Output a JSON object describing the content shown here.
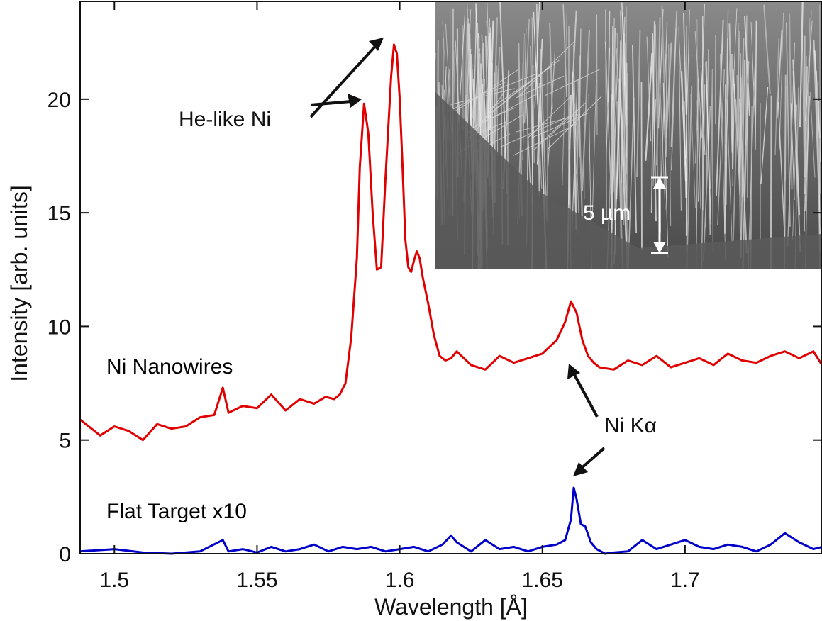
{
  "chart_data": {
    "type": "line",
    "xlabel": "Wavelength [Å]",
    "ylabel": "Intensity [arb. units]",
    "xlim": [
      1.488,
      1.748
    ],
    "ylim": [
      0,
      24.3
    ],
    "x_ticks": [
      1.5,
      1.55,
      1.6,
      1.65,
      1.7
    ],
    "x_tick_labels": [
      "1.5",
      "1.55",
      "1.6",
      "1.65",
      "1.7"
    ],
    "y_ticks": [
      0,
      5,
      10,
      15,
      20
    ],
    "y_tick_labels": [
      "0",
      "5",
      "10",
      "15",
      "20"
    ],
    "grid": false,
    "series": [
      {
        "name": "Ni Nanowires",
        "color": "#e00000",
        "x": [
          1.488,
          1.495,
          1.5,
          1.505,
          1.51,
          1.515,
          1.52,
          1.525,
          1.53,
          1.535,
          1.538,
          1.54,
          1.545,
          1.55,
          1.555,
          1.56,
          1.565,
          1.57,
          1.574,
          1.577,
          1.579,
          1.581,
          1.583,
          1.585,
          1.586,
          1.5875,
          1.589,
          1.5905,
          1.592,
          1.5935,
          1.595,
          1.597,
          1.598,
          1.599,
          1.6,
          1.601,
          1.602,
          1.603,
          1.604,
          1.605,
          1.606,
          1.607,
          1.608,
          1.61,
          1.612,
          1.614,
          1.616,
          1.618,
          1.62,
          1.625,
          1.63,
          1.635,
          1.64,
          1.645,
          1.65,
          1.655,
          1.658,
          1.66,
          1.662,
          1.664,
          1.666,
          1.668,
          1.67,
          1.675,
          1.68,
          1.685,
          1.69,
          1.695,
          1.7,
          1.705,
          1.71,
          1.715,
          1.72,
          1.725,
          1.73,
          1.735,
          1.74,
          1.745,
          1.748
        ],
        "values": [
          5.9,
          5.2,
          5.6,
          5.4,
          5.0,
          5.7,
          5.5,
          5.6,
          6.0,
          6.1,
          7.3,
          6.2,
          6.5,
          6.4,
          7.0,
          6.3,
          6.8,
          6.6,
          6.9,
          6.8,
          7.0,
          7.5,
          9.5,
          13.0,
          17.0,
          19.8,
          18.5,
          15.0,
          12.5,
          12.6,
          16.5,
          21.0,
          22.4,
          22.0,
          20.0,
          17.0,
          13.8,
          12.6,
          12.4,
          12.9,
          13.3,
          13.0,
          12.2,
          11.0,
          9.6,
          8.7,
          8.5,
          8.6,
          8.9,
          8.3,
          8.1,
          8.7,
          8.4,
          8.6,
          8.8,
          9.4,
          10.2,
          11.1,
          10.6,
          9.4,
          8.7,
          8.4,
          8.2,
          8.1,
          8.5,
          8.3,
          8.7,
          8.2,
          8.4,
          8.6,
          8.3,
          8.8,
          8.5,
          8.4,
          8.7,
          8.9,
          8.6,
          8.9,
          8.3
        ]
      },
      {
        "name": "Flat Target x10",
        "color": "#0000c8",
        "x": [
          1.488,
          1.5,
          1.51,
          1.52,
          1.53,
          1.538,
          1.54,
          1.545,
          1.55,
          1.555,
          1.56,
          1.565,
          1.57,
          1.575,
          1.58,
          1.585,
          1.59,
          1.595,
          1.6,
          1.605,
          1.61,
          1.615,
          1.618,
          1.62,
          1.625,
          1.63,
          1.635,
          1.64,
          1.645,
          1.65,
          1.655,
          1.658,
          1.66,
          1.661,
          1.662,
          1.6635,
          1.665,
          1.667,
          1.669,
          1.672,
          1.675,
          1.68,
          1.685,
          1.69,
          1.695,
          1.7,
          1.705,
          1.71,
          1.715,
          1.72,
          1.725,
          1.73,
          1.735,
          1.74,
          1.745,
          1.748
        ],
        "values": [
          0.1,
          0.2,
          0.05,
          0.0,
          0.1,
          0.6,
          0.1,
          0.2,
          0.05,
          0.3,
          0.1,
          0.2,
          0.4,
          0.1,
          0.3,
          0.2,
          0.3,
          0.1,
          0.2,
          0.3,
          0.1,
          0.4,
          0.8,
          0.5,
          0.1,
          0.6,
          0.2,
          0.3,
          0.1,
          0.3,
          0.4,
          0.6,
          1.5,
          2.9,
          2.4,
          1.3,
          1.2,
          0.5,
          0.2,
          0.0,
          0.05,
          0.1,
          0.6,
          0.2,
          0.4,
          0.6,
          0.3,
          0.2,
          0.4,
          0.3,
          0.1,
          0.4,
          0.9,
          0.5,
          0.2,
          0.3
        ]
      }
    ],
    "annotations": [
      {
        "text": "He-like Ni"
      },
      {
        "text": "Ni Kα"
      },
      {
        "text": "5 µm"
      }
    ],
    "inset": "SEM image of Ni nanowire array (side view)"
  }
}
